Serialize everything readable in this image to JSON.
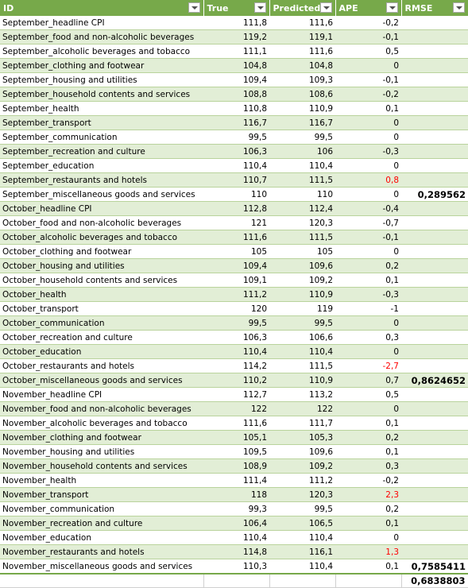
{
  "headers": [
    "ID",
    "True",
    "Predicted",
    "APE",
    "RMSE"
  ],
  "rows": [
    {
      "id": "September_headline CPI",
      "true": "111,8",
      "pred": "111,6",
      "ape": "-0,2",
      "rmse": "",
      "neg": false
    },
    {
      "id": "September_food and non-alcoholic beverages",
      "true": "119,2",
      "pred": "119,1",
      "ape": "-0,1",
      "rmse": "",
      "neg": false
    },
    {
      "id": "September_alcoholic beverages and tobacco",
      "true": "111,1",
      "pred": "111,6",
      "ape": "0,5",
      "rmse": "",
      "neg": false
    },
    {
      "id": "September_clothing and footwear",
      "true": "104,8",
      "pred": "104,8",
      "ape": "0",
      "rmse": "",
      "neg": false
    },
    {
      "id": "September_housing and utilities",
      "true": "109,4",
      "pred": "109,3",
      "ape": "-0,1",
      "rmse": "",
      "neg": false
    },
    {
      "id": "September_household contents and services",
      "true": "108,8",
      "pred": "108,6",
      "ape": "-0,2",
      "rmse": "",
      "neg": false
    },
    {
      "id": "September_health",
      "true": "110,8",
      "pred": "110,9",
      "ape": "0,1",
      "rmse": "",
      "neg": false
    },
    {
      "id": "September_transport",
      "true": "116,7",
      "pred": "116,7",
      "ape": "0",
      "rmse": "",
      "neg": false
    },
    {
      "id": "September_communication",
      "true": "99,5",
      "pred": "99,5",
      "ape": "0",
      "rmse": "",
      "neg": false
    },
    {
      "id": "September_recreation and culture",
      "true": "106,3",
      "pred": "106",
      "ape": "-0,3",
      "rmse": "",
      "neg": false
    },
    {
      "id": "September_education",
      "true": "110,4",
      "pred": "110,4",
      "ape": "0",
      "rmse": "",
      "neg": false
    },
    {
      "id": "September_restaurants and hotels",
      "true": "110,7",
      "pred": "111,5",
      "ape": "0,8",
      "rmse": "",
      "neg": true
    },
    {
      "id": "September_miscellaneous goods and services",
      "true": "110",
      "pred": "110",
      "ape": "0",
      "rmse": "0,289562",
      "neg": false
    },
    {
      "id": "October_headline CPI",
      "true": "112,8",
      "pred": "112,4",
      "ape": "-0,4",
      "rmse": "",
      "neg": false
    },
    {
      "id": "October_food and non-alcoholic beverages",
      "true": "121",
      "pred": "120,3",
      "ape": "-0,7",
      "rmse": "",
      "neg": false
    },
    {
      "id": "October_alcoholic beverages and tobacco",
      "true": "111,6",
      "pred": "111,5",
      "ape": "-0,1",
      "rmse": "",
      "neg": false
    },
    {
      "id": "October_clothing and footwear",
      "true": "105",
      "pred": "105",
      "ape": "0",
      "rmse": "",
      "neg": false
    },
    {
      "id": "October_housing and utilities",
      "true": "109,4",
      "pred": "109,6",
      "ape": "0,2",
      "rmse": "",
      "neg": false
    },
    {
      "id": "October_household contents and services",
      "true": "109,1",
      "pred": "109,2",
      "ape": "0,1",
      "rmse": "",
      "neg": false
    },
    {
      "id": "October_health",
      "true": "111,2",
      "pred": "110,9",
      "ape": "-0,3",
      "rmse": "",
      "neg": false
    },
    {
      "id": "October_transport",
      "true": "120",
      "pred": "119",
      "ape": "-1",
      "rmse": "",
      "neg": false
    },
    {
      "id": "October_communication",
      "true": "99,5",
      "pred": "99,5",
      "ape": "0",
      "rmse": "",
      "neg": false
    },
    {
      "id": "October_recreation and culture",
      "true": "106,3",
      "pred": "106,6",
      "ape": "0,3",
      "rmse": "",
      "neg": false
    },
    {
      "id": "October_education",
      "true": "110,4",
      "pred": "110,4",
      "ape": "0",
      "rmse": "",
      "neg": false
    },
    {
      "id": "October_restaurants and hotels",
      "true": "114,2",
      "pred": "111,5",
      "ape": "-2,7",
      "rmse": "",
      "neg": true
    },
    {
      "id": "October_miscellaneous goods and services",
      "true": "110,2",
      "pred": "110,9",
      "ape": "0,7",
      "rmse": "0,8624652",
      "neg": false
    },
    {
      "id": "November_headline CPI",
      "true": "112,7",
      "pred": "113,2",
      "ape": "0,5",
      "rmse": "",
      "neg": false
    },
    {
      "id": "November_food and non-alcoholic beverages",
      "true": "122",
      "pred": "122",
      "ape": "0",
      "rmse": "",
      "neg": false
    },
    {
      "id": "November_alcoholic beverages and tobacco",
      "true": "111,6",
      "pred": "111,7",
      "ape": "0,1",
      "rmse": "",
      "neg": false
    },
    {
      "id": "November_clothing and footwear",
      "true": "105,1",
      "pred": "105,3",
      "ape": "0,2",
      "rmse": "",
      "neg": false
    },
    {
      "id": "November_housing and utilities",
      "true": "109,5",
      "pred": "109,6",
      "ape": "0,1",
      "rmse": "",
      "neg": false
    },
    {
      "id": "November_household contents and services",
      "true": "108,9",
      "pred": "109,2",
      "ape": "0,3",
      "rmse": "",
      "neg": false
    },
    {
      "id": "November_health",
      "true": "111,4",
      "pred": "111,2",
      "ape": "-0,2",
      "rmse": "",
      "neg": false
    },
    {
      "id": "November_transport",
      "true": "118",
      "pred": "120,3",
      "ape": "2,3",
      "rmse": "",
      "neg": true
    },
    {
      "id": "November_communication",
      "true": "99,3",
      "pred": "99,5",
      "ape": "0,2",
      "rmse": "",
      "neg": false
    },
    {
      "id": "November_recreation and culture",
      "true": "106,4",
      "pred": "106,5",
      "ape": "0,1",
      "rmse": "",
      "neg": false
    },
    {
      "id": "November_education",
      "true": "110,4",
      "pred": "110,4",
      "ape": "0",
      "rmse": "",
      "neg": false
    },
    {
      "id": "November_restaurants and hotels",
      "true": "114,8",
      "pred": "116,1",
      "ape": "1,3",
      "rmse": "",
      "neg": true
    },
    {
      "id": "November_miscellaneous goods and services",
      "true": "110,3",
      "pred": "110,4",
      "ape": "0,1",
      "rmse": "0,7585411",
      "neg": false
    }
  ],
  "total_rmse": "0,6838803",
  "colors": {
    "header": "#77a94a",
    "band": "#e2eed6",
    "highlight": "#ff0000"
  }
}
